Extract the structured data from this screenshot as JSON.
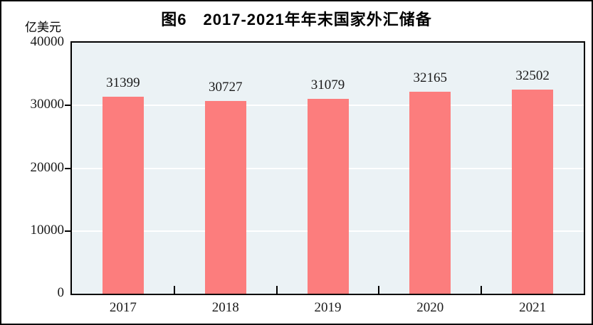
{
  "figure": {
    "title": "图6　2017-2021年年末国家外汇储备",
    "unit_label": "亿美元"
  },
  "colors": {
    "bar": "#FC7D7D",
    "plot_background": "#EBF2F5",
    "gridline": "#FFFFFF",
    "axis": "#000000",
    "text": "#1a1a1a"
  },
  "chart_data": {
    "type": "bar",
    "categories": [
      "2017",
      "2018",
      "2019",
      "2020",
      "2021"
    ],
    "values": [
      31399,
      30727,
      31079,
      32165,
      32502
    ],
    "title": "图6　2017-2021年年末国家外汇储备",
    "xlabel": "",
    "ylabel": "亿美元",
    "ylim": [
      0,
      40000
    ],
    "yticks": [
      0,
      10000,
      20000,
      30000,
      40000
    ],
    "grid": true,
    "legend": "none",
    "data_labels": true
  }
}
